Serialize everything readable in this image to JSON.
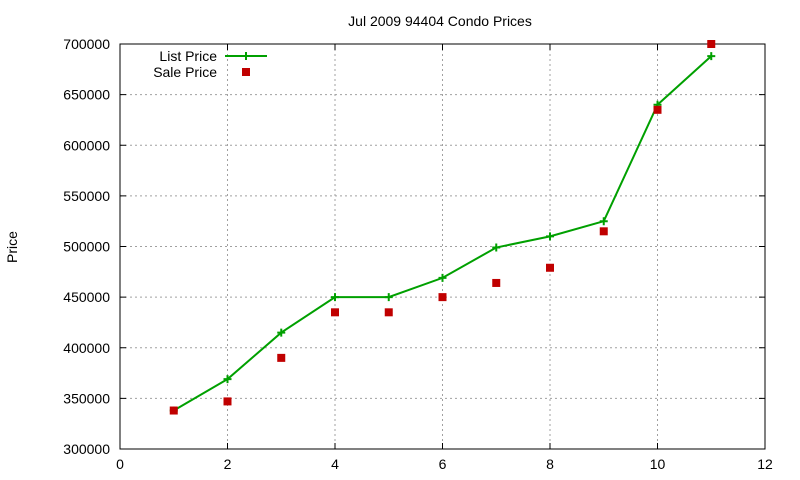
{
  "chart_data": {
    "type": "line",
    "title": "Jul 2009 94404 Condo Prices",
    "xlabel": "",
    "ylabel": "Price",
    "xlim": [
      0,
      12
    ],
    "ylim": [
      300000,
      700000
    ],
    "xticks": [
      0,
      2,
      4,
      6,
      8,
      10,
      12
    ],
    "yticks": [
      300000,
      350000,
      400000,
      450000,
      500000,
      550000,
      600000,
      650000,
      700000
    ],
    "grid": true,
    "legend_position": "top-left",
    "series": [
      {
        "name": "List Price",
        "style": "linespoints",
        "marker": "plus",
        "color": "#00a000",
        "x": [
          1,
          2,
          3,
          4,
          5,
          6,
          7,
          8,
          9,
          10,
          11
        ],
        "y": [
          338000,
          369000,
          415000,
          450000,
          450000,
          469000,
          499000,
          510000,
          525000,
          640000,
          688000
        ]
      },
      {
        "name": "Sale Price",
        "style": "points",
        "marker": "square",
        "color": "#c00000",
        "x": [
          1,
          2,
          3,
          4,
          5,
          6,
          7,
          8,
          9,
          10,
          11
        ],
        "y": [
          338000,
          347000,
          390000,
          435000,
          435000,
          450000,
          464000,
          479000,
          515000,
          635000,
          700000
        ]
      }
    ]
  }
}
